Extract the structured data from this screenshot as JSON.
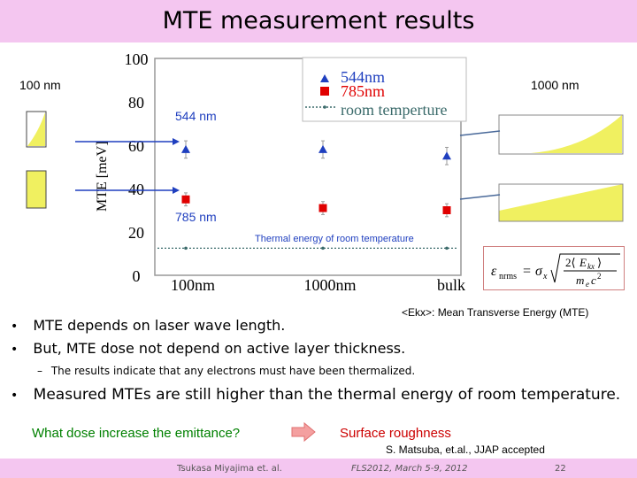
{
  "slide": {
    "title": "MTE measurement results",
    "label_left_thickness": "100 nm",
    "label_right_thickness": "1000 nm",
    "label_544": "544 nm",
    "label_785": "785 nm",
    "label_thermal": "Thermal energy of room temperature",
    "formula_note": "<Ekx>: Mean Transverse Energy (MTE)",
    "bullets": [
      "MTE depends on laser wave length.",
      "But, MTE dose not depend on active layer thickness."
    ],
    "sub_bullet": "The results indicate that any electrons must have been thermalized.",
    "bullet3": "Measured MTEs are still higher than the thermal energy of room temperature.",
    "question": "What dose increase the emittance?",
    "answer": "Surface roughness",
    "citation": "S. Matsuba, et.al., JJAP accepted",
    "footer_author": "Tsukasa Miyajima et. al.",
    "footer_event": "FLS2012, March 5-9, 2012",
    "footer_page": "22",
    "colors": {
      "header_bg": "#f4c6f0",
      "accent_blue": "#1f3fbf",
      "accent_red": "#e00000",
      "layer_yellow": "#f0f060",
      "arrow_pink": "#f4a0a0"
    }
  },
  "chart_data": {
    "type": "scatter",
    "ylabel": "MTE [meV]",
    "categories": [
      "100nm",
      "1000nm",
      "bulk"
    ],
    "ylim": [
      0,
      100
    ],
    "yticks": [
      "0",
      "20",
      "40",
      "60",
      "80",
      "100"
    ],
    "grid": false,
    "legend_position": "top-right",
    "series": [
      {
        "name": "544nm",
        "marker": "triangle",
        "color": "#1f3fbf",
        "values": [
          58,
          58,
          55
        ],
        "errors": [
          4,
          4,
          4
        ]
      },
      {
        "name": "785nm",
        "marker": "square",
        "color": "#e00000",
        "values": [
          35,
          31,
          30
        ],
        "errors": [
          3,
          3,
          3
        ]
      },
      {
        "name": "room temperture",
        "marker": "dot-line",
        "color": "#3a6a6a",
        "values": [
          12.5,
          12.5,
          12.5
        ]
      }
    ]
  }
}
